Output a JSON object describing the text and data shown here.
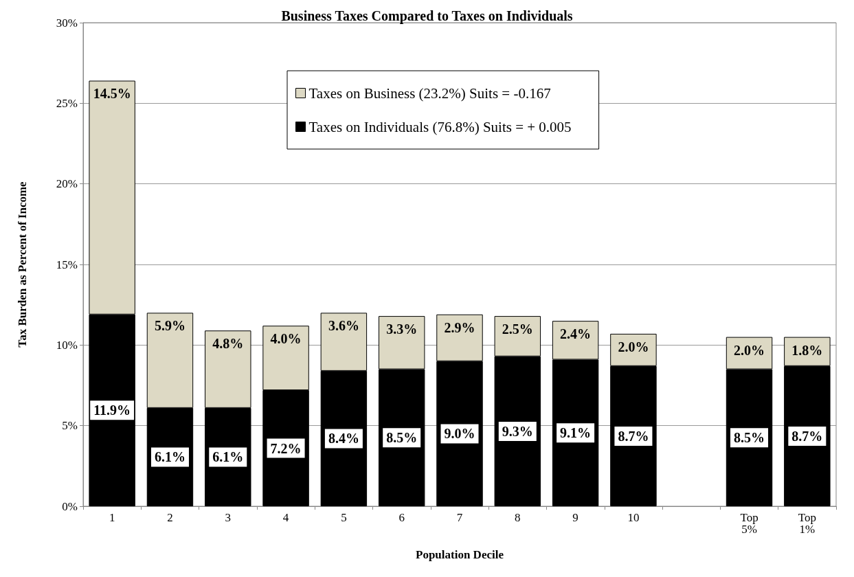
{
  "chart_data": {
    "type": "bar",
    "stacked": true,
    "title": "Business Taxes Compared to Taxes on Individuals",
    "xlabel": "Population Decile",
    "ylabel": "Tax Burden as Percent of Income",
    "categories": [
      "1",
      "2",
      "3",
      "4",
      "5",
      "6",
      "7",
      "8",
      "9",
      "10",
      null,
      "Top\n5%",
      "Top\n1%"
    ],
    "series": [
      {
        "name": "Taxes on Individuals (76.8%) Suits = + 0.005",
        "color": "#000000",
        "values": [
          11.9,
          6.1,
          6.1,
          7.2,
          8.4,
          8.5,
          9.0,
          9.3,
          9.1,
          8.7,
          null,
          8.5,
          8.7
        ],
        "value_labels": [
          "11.9%",
          "6.1%",
          "6.1%",
          "7.2%",
          "8.4%",
          "8.5%",
          "9.0%",
          "9.3%",
          "9.1%",
          "8.7%",
          null,
          "8.5%",
          "8.7%"
        ]
      },
      {
        "name": "Taxes on Business (23.2%) Suits = -0.167",
        "color": "#ddd9c4",
        "values": [
          14.5,
          5.9,
          4.8,
          4.0,
          3.6,
          3.3,
          2.9,
          2.5,
          2.4,
          2.0,
          null,
          2.0,
          1.8
        ],
        "value_labels": [
          "14.5%",
          "5.9%",
          "4.8%",
          "4.0%",
          "3.6%",
          "3.3%",
          "2.9%",
          "2.5%",
          "2.4%",
          "2.0%",
          null,
          "2.0%",
          "1.8%"
        ]
      }
    ],
    "ylim": [
      0,
      30
    ],
    "yticks": [
      {
        "value": 0,
        "label": "0%"
      },
      {
        "value": 5,
        "label": "5%"
      },
      {
        "value": 10,
        "label": "10%"
      },
      {
        "value": 15,
        "label": "15%"
      },
      {
        "value": 20,
        "label": "20%"
      },
      {
        "value": 25,
        "label": "25%"
      },
      {
        "value": 30,
        "label": "30%"
      }
    ],
    "grid": "y",
    "legend": "top"
  }
}
